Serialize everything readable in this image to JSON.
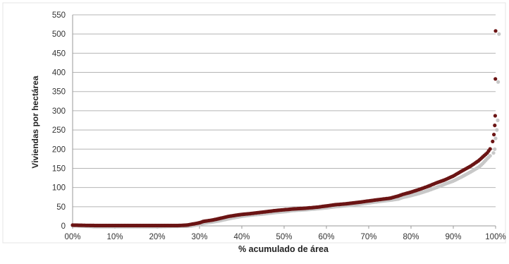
{
  "chart_data": {
    "type": "scatter",
    "title": "",
    "xlabel": "% acumulado de área",
    "ylabel": "Viviendas por hectárea",
    "x_ticks": [
      "00%",
      "10%",
      "20%",
      "30%",
      "40%",
      "50%",
      "60%",
      "70%",
      "80%",
      "90%",
      "100%"
    ],
    "y_ticks": [
      "0",
      "50",
      "100",
      "150",
      "200",
      "250",
      "300",
      "350",
      "400",
      "450",
      "500",
      "550"
    ],
    "xlim": [
      0,
      100
    ],
    "ylim": [
      0,
      550
    ],
    "grid": true,
    "legend": "none",
    "series": [
      {
        "color": "#6b1414",
        "points": [
          [
            0,
            2
          ],
          [
            5,
            1
          ],
          [
            10,
            1
          ],
          [
            15,
            1
          ],
          [
            20,
            1
          ],
          [
            25,
            1
          ],
          [
            27,
            2
          ],
          [
            28,
            4
          ],
          [
            30,
            8
          ],
          [
            31,
            12
          ],
          [
            33,
            15
          ],
          [
            35,
            20
          ],
          [
            37,
            25
          ],
          [
            40,
            30
          ],
          [
            42,
            32
          ],
          [
            45,
            36
          ],
          [
            48,
            40
          ],
          [
            50,
            42
          ],
          [
            52,
            44
          ],
          [
            55,
            46
          ],
          [
            58,
            49
          ],
          [
            60,
            52
          ],
          [
            62,
            55
          ],
          [
            65,
            58
          ],
          [
            68,
            62
          ],
          [
            70,
            65
          ],
          [
            72,
            68
          ],
          [
            75,
            72
          ],
          [
            77,
            78
          ],
          [
            78,
            82
          ],
          [
            80,
            88
          ],
          [
            82,
            95
          ],
          [
            84,
            103
          ],
          [
            86,
            112
          ],
          [
            88,
            120
          ],
          [
            90,
            130
          ],
          [
            92,
            143
          ],
          [
            94,
            155
          ],
          [
            96,
            170
          ],
          [
            97,
            180
          ],
          [
            98,
            190
          ],
          [
            99,
            205
          ],
          [
            99.3,
            220
          ],
          [
            99.6,
            238
          ],
          [
            99.8,
            262
          ],
          [
            99.9,
            287
          ],
          [
            99.95,
            383
          ],
          [
            100,
            508
          ]
        ]
      },
      {
        "color": "#c8c8c8",
        "points": [
          [
            0,
            1
          ],
          [
            5,
            -2
          ],
          [
            10,
            -2
          ],
          [
            15,
            -2
          ],
          [
            20,
            -2
          ],
          [
            25,
            -1
          ],
          [
            27,
            -1
          ],
          [
            28,
            0
          ],
          [
            30,
            4
          ],
          [
            31,
            7
          ],
          [
            33,
            10
          ],
          [
            35,
            14
          ],
          [
            37,
            19
          ],
          [
            40,
            25
          ],
          [
            42,
            28
          ],
          [
            45,
            31
          ],
          [
            48,
            35
          ],
          [
            50,
            37
          ],
          [
            52,
            40
          ],
          [
            55,
            42
          ],
          [
            58,
            45
          ],
          [
            60,
            47
          ],
          [
            62,
            50
          ],
          [
            65,
            53
          ],
          [
            68,
            57
          ],
          [
            70,
            60
          ],
          [
            72,
            63
          ],
          [
            75,
            67
          ],
          [
            77,
            70
          ],
          [
            78,
            74
          ],
          [
            80,
            79
          ],
          [
            82,
            85
          ],
          [
            84,
            92
          ],
          [
            86,
            100
          ],
          [
            88,
            109
          ],
          [
            90,
            117
          ],
          [
            92,
            128
          ],
          [
            94,
            140
          ],
          [
            96,
            153
          ],
          [
            97,
            163
          ],
          [
            98,
            175
          ],
          [
            99,
            186
          ],
          [
            99.5,
            190
          ],
          [
            99.8,
            200
          ],
          [
            100,
            228
          ],
          [
            100.3,
            250
          ],
          [
            100.5,
            275
          ],
          [
            100.6,
            375
          ],
          [
            100.8,
            500
          ]
        ]
      }
    ]
  }
}
